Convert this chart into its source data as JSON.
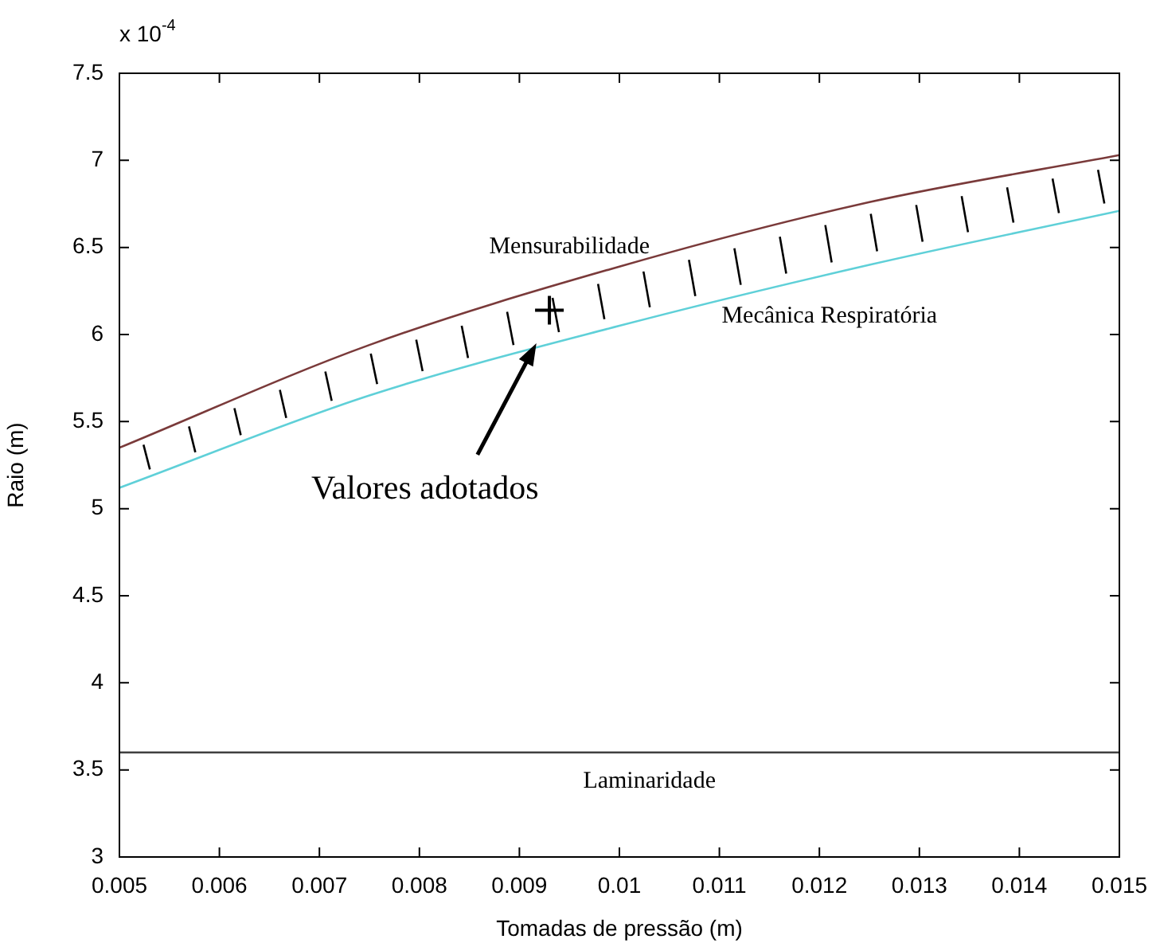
{
  "chart_data": {
    "type": "line",
    "xlabel": "Tomadas de pressão (m)",
    "ylabel": "Raio (m)",
    "annotations": [
      "x 10$^{-4}$",
      {
        "text": "Valores adotados",
        "x": 0.00917,
        "y": 5.95
      }
    ],
    "xlim": [
      0.005,
      0.015
    ],
    "xticks": [
      0.005,
      0.006,
      0.007,
      0.008,
      0.009,
      0.01,
      0.011,
      0.012,
      0.013,
      0.014,
      0.015
    ],
    "ylim": [
      3,
      7.5
    ],
    "yticks": [
      3,
      3.5,
      4,
      4.5,
      5,
      5.5,
      6,
      6.5,
      7,
      7.5
    ],
    "grid": false,
    "legend": false,
    "marker": "none",
    "line_style": "solid",
    "series": [
      {
        "name": "Mensurabilidade",
        "color": "#7a3a3a",
        "x": [
          0.005,
          0.0075,
          0.01,
          0.0125,
          0.015
        ],
        "values": [
          5.35,
          5.94,
          6.39,
          6.76,
          7.03
        ]
      },
      {
        "name": "Mecânica Respiratória",
        "color": "#5fd0d8",
        "x": [
          0.005,
          0.0075,
          0.01,
          0.0125,
          0.015
        ],
        "values": [
          5.12,
          5.65,
          6.05,
          6.4,
          6.71
        ]
      },
      {
        "name": "Laminaridade",
        "color": "#404040",
        "x": [
          0.005,
          0.015
        ],
        "values": [
          3.6,
          3.6
        ]
      },
      {
        "type": "scatter",
        "marker": "cross",
        "color": "#000000",
        "x": [
          0.0093
        ],
        "values": [
          6.14
        ]
      }
    ]
  }
}
